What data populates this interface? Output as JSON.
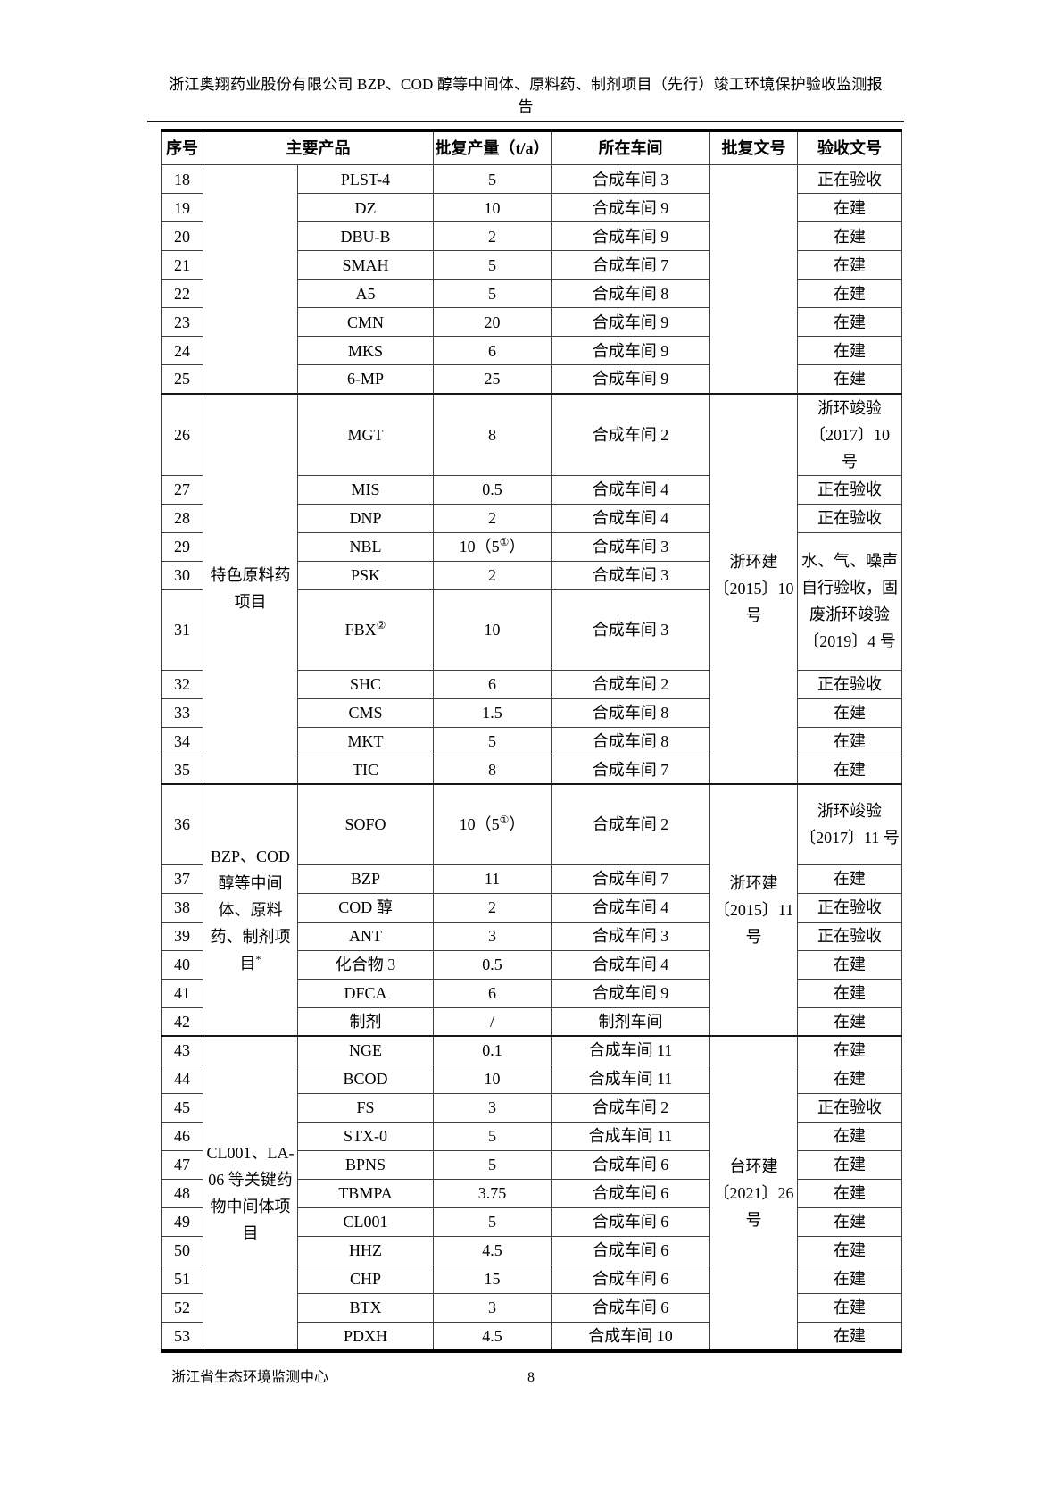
{
  "page_header": {
    "title_line1": "浙江奥翔药业股份有限公司 BZP、COD 醇等中间体、原料药、制剂项目（先行）竣工环境保护验收监测报",
    "title_line2": "告"
  },
  "table": {
    "columns": [
      "序号",
      "主要产品",
      "批复产量（t/a）",
      "所在车间",
      "批复文号",
      "验收文号"
    ],
    "rows": [
      {
        "no": "18",
        "product": "PLST-4",
        "cap": "5",
        "workshop": "合成车间 3",
        "cat": {
          "text": "",
          "rowspan": 8
        },
        "approval": {
          "text": "",
          "rowspan": 8
        },
        "acceptance": {
          "text": "正在验收",
          "rowspan": 1
        }
      },
      {
        "no": "19",
        "product": "DZ",
        "cap": "10",
        "workshop": "合成车间 9",
        "acceptance": {
          "text": "在建",
          "rowspan": 1
        }
      },
      {
        "no": "20",
        "product": "DBU-B",
        "cap": "2",
        "workshop": "合成车间 9",
        "acceptance": {
          "text": "在建",
          "rowspan": 1
        }
      },
      {
        "no": "21",
        "product": "SMAH",
        "cap": "5",
        "workshop": "合成车间 7",
        "acceptance": {
          "text": "在建",
          "rowspan": 1
        }
      },
      {
        "no": "22",
        "product": "A5",
        "cap": "5",
        "workshop": "合成车间 8",
        "acceptance": {
          "text": "在建",
          "rowspan": 1
        }
      },
      {
        "no": "23",
        "product": "CMN",
        "cap": "20",
        "workshop": "合成车间 9",
        "acceptance": {
          "text": "在建",
          "rowspan": 1
        }
      },
      {
        "no": "24",
        "product": "MKS",
        "cap": "6",
        "workshop": "合成车间 9",
        "acceptance": {
          "text": "在建",
          "rowspan": 1
        }
      },
      {
        "no": "25",
        "product": "6-MP",
        "cap": "25",
        "workshop": "合成车间 9",
        "acceptance": {
          "text": "在建",
          "rowspan": 1
        }
      },
      {
        "no": "26",
        "product": "MGT",
        "cap": "8",
        "workshop": "合成车间 2",
        "cat": {
          "text": "特色原料药项目",
          "rowspan": 10
        },
        "approval": {
          "text": "浙环建〔2015〕10 号",
          "rowspan": 10
        },
        "acceptance": {
          "text": "浙环竣验〔2017〕10 号",
          "rowspan": 1
        }
      },
      {
        "no": "27",
        "product": "MIS",
        "cap": "0.5",
        "workshop": "合成车间 4",
        "acceptance": {
          "text": "正在验收",
          "rowspan": 1
        }
      },
      {
        "no": "28",
        "product": "DNP",
        "cap": "2",
        "workshop": "合成车间 4",
        "acceptance": {
          "text": "正在验收",
          "rowspan": 1
        }
      },
      {
        "no": "29",
        "product": "NBL",
        "cap": "10（5",
        "cap_sup": "①",
        "cap_tail": "）",
        "workshop": "合成车间 3",
        "acceptance": {
          "text": "水、气、噪声自行验收，固废浙环竣验〔2019〕4 号",
          "rowspan": 3
        }
      },
      {
        "no": "30",
        "product": "PSK",
        "cap": "2",
        "workshop": "合成车间 3"
      },
      {
        "no": "31",
        "product": "FBX",
        "product_sup": "②",
        "cap": "10",
        "workshop": "合成车间 3"
      },
      {
        "no": "32",
        "product": "SHC",
        "cap": "6",
        "workshop": "合成车间 2",
        "acceptance": {
          "text": "正在验收",
          "rowspan": 1
        }
      },
      {
        "no": "33",
        "product": "CMS",
        "cap": "1.5",
        "workshop": "合成车间 8",
        "acceptance": {
          "text": "在建",
          "rowspan": 1
        }
      },
      {
        "no": "34",
        "product": "MKT",
        "cap": "5",
        "workshop": "合成车间 8",
        "acceptance": {
          "text": "在建",
          "rowspan": 1
        }
      },
      {
        "no": "35",
        "product": "TIC",
        "cap": "8",
        "workshop": "合成车间 7",
        "acceptance": {
          "text": "在建",
          "rowspan": 1
        }
      },
      {
        "no": "36",
        "product": "SOFO",
        "cap": "10（5",
        "cap_sup": "①",
        "cap_tail": "）",
        "workshop": "合成车间 2",
        "cat": {
          "text": "BZP、COD 醇等中间体、原料药、制剂项目",
          "sup": "*",
          "rowspan": 7
        },
        "approval": {
          "text": "浙环建〔2015〕11 号",
          "rowspan": 7
        },
        "acceptance": {
          "text": "浙环竣验〔2017〕11 号",
          "rowspan": 1
        }
      },
      {
        "no": "37",
        "product": "BZP",
        "cap": "11",
        "workshop": "合成车间 7",
        "acceptance": {
          "text": "在建",
          "rowspan": 1
        }
      },
      {
        "no": "38",
        "product": "COD 醇",
        "cap": "2",
        "workshop": "合成车间 4",
        "acceptance": {
          "text": "正在验收",
          "rowspan": 1
        }
      },
      {
        "no": "39",
        "product": "ANT",
        "cap": "3",
        "workshop": "合成车间 3",
        "acceptance": {
          "text": "正在验收",
          "rowspan": 1
        }
      },
      {
        "no": "40",
        "product": "化合物 3",
        "cap": "0.5",
        "workshop": "合成车间 4",
        "acceptance": {
          "text": "在建",
          "rowspan": 1
        }
      },
      {
        "no": "41",
        "product": "DFCA",
        "cap": "6",
        "workshop": "合成车间 9",
        "acceptance": {
          "text": "在建",
          "rowspan": 1
        }
      },
      {
        "no": "42",
        "product": "制剂",
        "cap": "/",
        "workshop": "制剂车间",
        "acceptance": {
          "text": "在建",
          "rowspan": 1
        }
      },
      {
        "no": "43",
        "product": "NGE",
        "cap": "0.1",
        "workshop": "合成车间 11",
        "cat": {
          "text": "CL001、LA-06 等关键药物中间体项目",
          "rowspan": 11
        },
        "approval": {
          "text": "台环建〔2021〕26 号",
          "rowspan": 11
        },
        "acceptance": {
          "text": "在建",
          "rowspan": 1
        }
      },
      {
        "no": "44",
        "product": "BCOD",
        "cap": "10",
        "workshop": "合成车间 11",
        "acceptance": {
          "text": "在建",
          "rowspan": 1
        }
      },
      {
        "no": "45",
        "product": "FS",
        "cap": "3",
        "workshop": "合成车间 2",
        "acceptance": {
          "text": "正在验收",
          "rowspan": 1
        }
      },
      {
        "no": "46",
        "product": "STX-0",
        "cap": "5",
        "workshop": "合成车间 11",
        "acceptance": {
          "text": "在建",
          "rowspan": 1
        }
      },
      {
        "no": "47",
        "product": "BPNS",
        "cap": "5",
        "workshop": "合成车间 6",
        "acceptance": {
          "text": "在建",
          "rowspan": 1
        }
      },
      {
        "no": "48",
        "product": "TBMPA",
        "cap": "3.75",
        "workshop": "合成车间 6",
        "acceptance": {
          "text": "在建",
          "rowspan": 1
        }
      },
      {
        "no": "49",
        "product": "CL001",
        "cap": "5",
        "workshop": "合成车间 6",
        "acceptance": {
          "text": "在建",
          "rowspan": 1
        }
      },
      {
        "no": "50",
        "product": "HHZ",
        "cap": "4.5",
        "workshop": "合成车间 6",
        "acceptance": {
          "text": "在建",
          "rowspan": 1
        }
      },
      {
        "no": "51",
        "product": "CHP",
        "cap": "15",
        "workshop": "合成车间 6",
        "acceptance": {
          "text": "在建",
          "rowspan": 1
        }
      },
      {
        "no": "52",
        "product": "BTX",
        "cap": "3",
        "workshop": "合成车间 6",
        "acceptance": {
          "text": "在建",
          "rowspan": 1
        }
      },
      {
        "no": "53",
        "product": "PDXH",
        "cap": "4.5",
        "workshop": "合成车间 10",
        "acceptance": {
          "text": "在建",
          "rowspan": 1
        }
      }
    ]
  },
  "footer": {
    "org": "浙江省生态环境监测中心",
    "page_number": "8"
  }
}
